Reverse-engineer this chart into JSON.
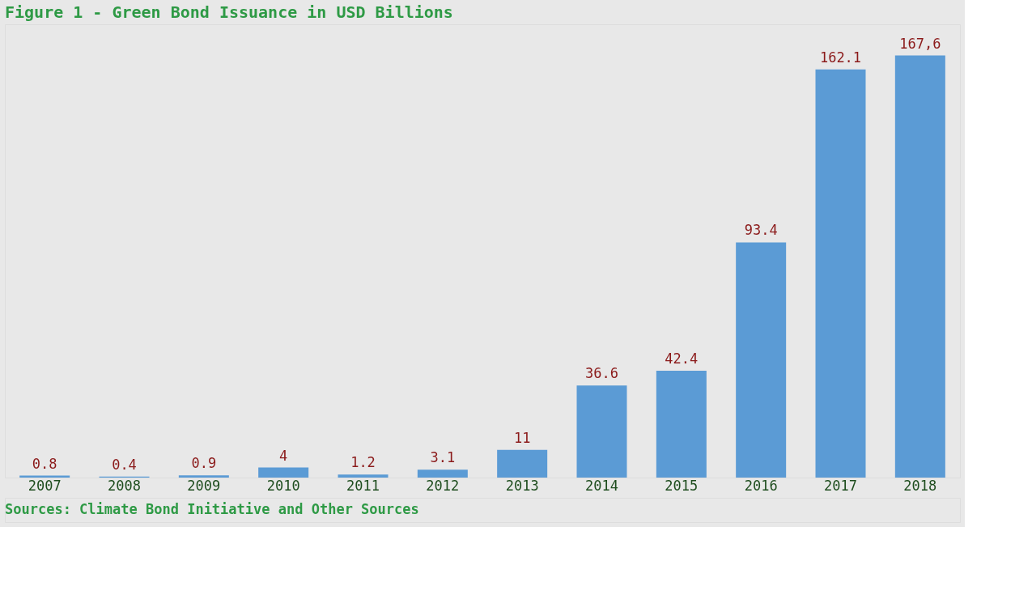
{
  "chart_data": {
    "type": "bar",
    "title": "Figure 1 - Green Bond Issuance in USD Billions",
    "categories": [
      "2007",
      "2008",
      "2009",
      "2010",
      "2011",
      "2012",
      "2013",
      "2014",
      "2015",
      "2016",
      "2017",
      "2018"
    ],
    "values": [
      0.8,
      0.4,
      0.9,
      4,
      1.2,
      3.1,
      11,
      36.6,
      42.4,
      93.4,
      162.1,
      167.6
    ],
    "value_labels": [
      "0.8",
      "0.4",
      "0.9",
      "4",
      "1.2",
      "3.1",
      "11",
      "36.6",
      "42.4",
      "93.4",
      "162.1",
      "167,6"
    ],
    "color": "#5b9bd5",
    "grid": false,
    "annotations": [
      "Sources: Climate Bond Initiative and Other Sources"
    ]
  }
}
